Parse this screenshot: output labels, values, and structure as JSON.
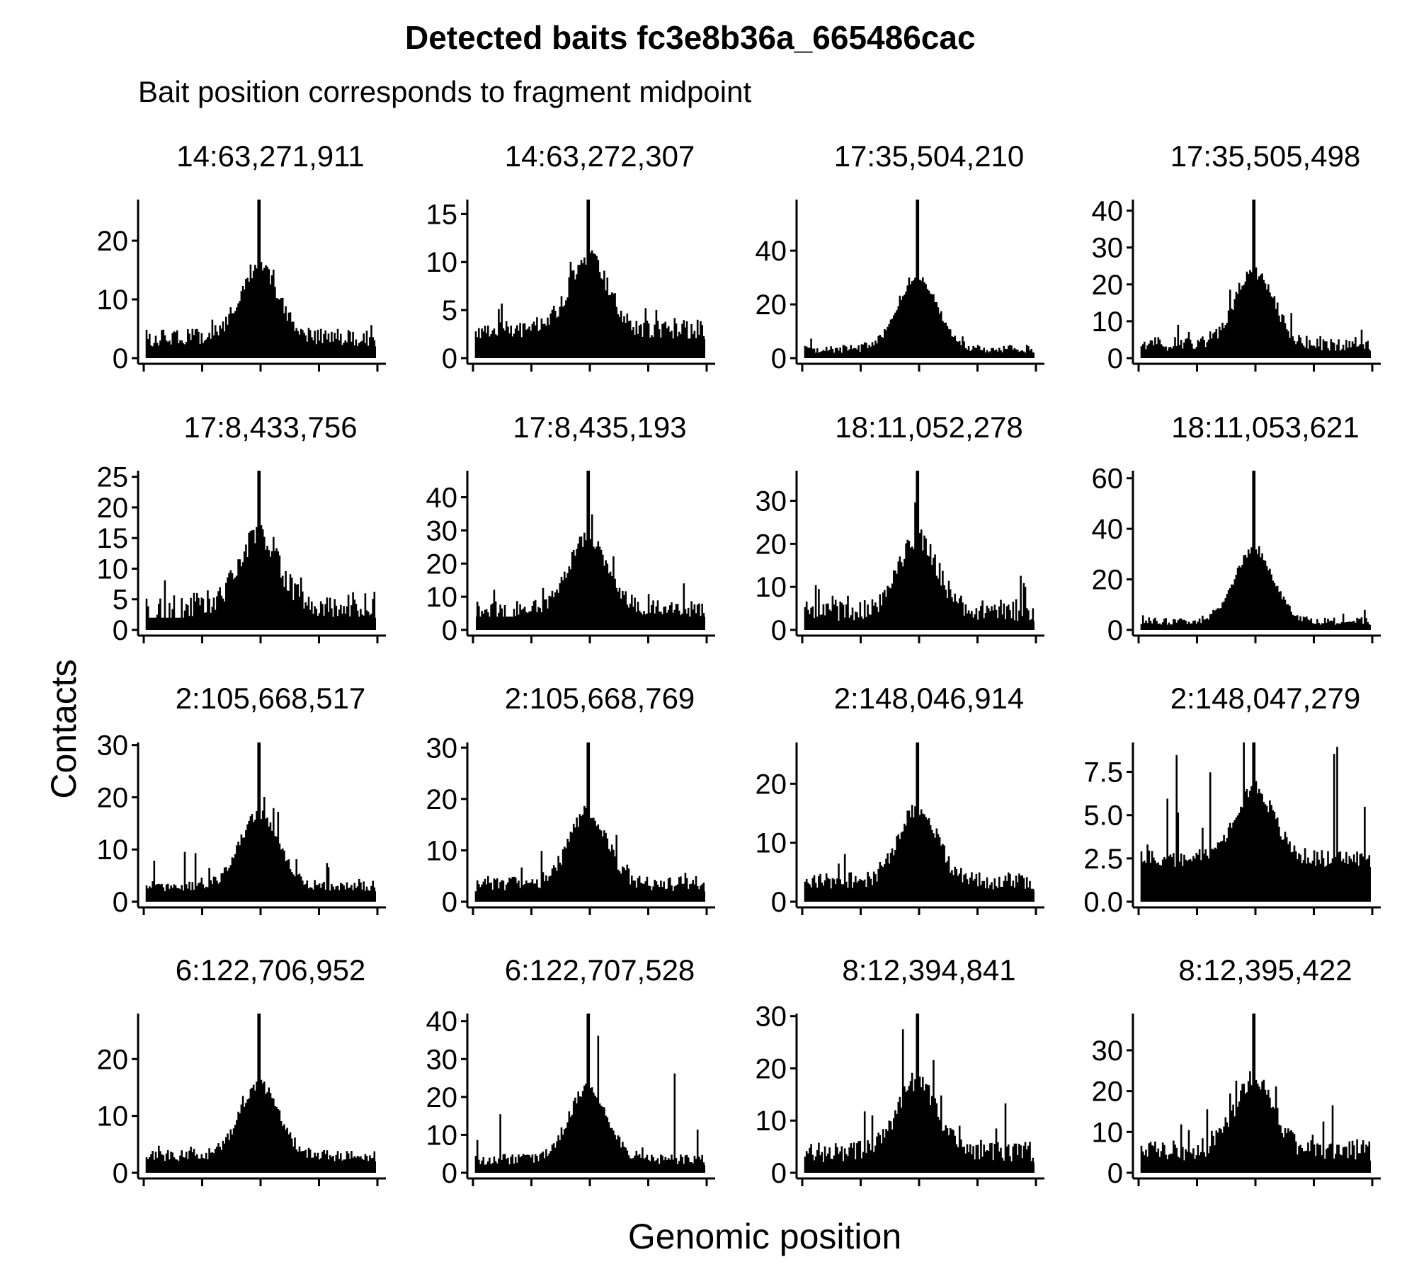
{
  "figure": {
    "title": "Detected baits fc3e8b36a_665486cac",
    "subtitle": "Bait position corresponds to fragment midpoint",
    "xlabel": "Genomic position",
    "ylabel": "Contacts"
  },
  "chart_data": [
    {
      "type": "bar",
      "title": "14:63,271,911",
      "ylim": [
        0,
        27
      ],
      "yticks": [
        "0",
        "10",
        "20"
      ],
      "ytick_values": [
        0,
        10,
        20
      ],
      "baseline": 2,
      "peak": 27,
      "noise": 3,
      "max_noise": 7,
      "sparse": false,
      "seed": 11
    },
    {
      "type": "bar",
      "title": "14:63,272,307",
      "ylim": [
        0,
        16.5
      ],
      "yticks": [
        "0",
        "5",
        "10",
        "15"
      ],
      "ytick_values": [
        0,
        5,
        10,
        15
      ],
      "baseline": 2,
      "peak": 16.5,
      "noise": 2,
      "max_noise": 6,
      "sparse": false,
      "seed": 12
    },
    {
      "type": "bar",
      "title": "17:35,504,210",
      "ylim": [
        0,
        59
      ],
      "yticks": [
        "0",
        "20",
        "40"
      ],
      "ytick_values": [
        0,
        20,
        40
      ],
      "baseline": 2,
      "peak": 59,
      "noise": 3,
      "max_noise": 8,
      "sparse": false,
      "seed": 13
    },
    {
      "type": "bar",
      "title": "17:35,505,498",
      "ylim": [
        0,
        43
      ],
      "yticks": [
        "0",
        "10",
        "20",
        "30",
        "40"
      ],
      "ytick_values": [
        0,
        10,
        20,
        30,
        40
      ],
      "baseline": 2,
      "peak": 43,
      "noise": 4,
      "max_noise": 10,
      "sparse": false,
      "seed": 14
    },
    {
      "type": "bar",
      "title": "17:8,433,756",
      "ylim": [
        0,
        26
      ],
      "yticks": [
        "0",
        "5",
        "10",
        "15",
        "20",
        "25"
      ],
      "ytick_values": [
        0,
        5,
        10,
        15,
        20,
        25
      ],
      "baseline": 2,
      "peak": 26,
      "noise": 4,
      "max_noise": 10,
      "sparse": true,
      "seed": 15
    },
    {
      "type": "bar",
      "title": "17:8,435,193",
      "ylim": [
        0,
        48
      ],
      "yticks": [
        "0",
        "10",
        "20",
        "30",
        "40"
      ],
      "ytick_values": [
        0,
        10,
        20,
        30,
        40
      ],
      "baseline": 4,
      "peak": 48,
      "noise": 5,
      "max_noise": 16,
      "sparse": true,
      "seed": 16
    },
    {
      "type": "bar",
      "title": "18:11,052,278",
      "ylim": [
        0,
        37
      ],
      "yticks": [
        "0",
        "10",
        "20",
        "30"
      ],
      "ytick_values": [
        0,
        10,
        20,
        30
      ],
      "baseline": 2,
      "peak": 37,
      "noise": 5,
      "max_noise": 14,
      "sparse": false,
      "seed": 17
    },
    {
      "type": "bar",
      "title": "18:11,053,621",
      "ylim": [
        0,
        63
      ],
      "yticks": [
        "0",
        "20",
        "40",
        "60"
      ],
      "ytick_values": [
        0,
        20,
        40,
        60
      ],
      "baseline": 2,
      "peak": 63,
      "noise": 3,
      "max_noise": 8,
      "sparse": false,
      "seed": 18
    },
    {
      "type": "bar",
      "title": "2:105,668,517",
      "ylim": [
        0,
        30.5
      ],
      "yticks": [
        "0",
        "10",
        "20",
        "30"
      ],
      "ytick_values": [
        0,
        10,
        20,
        30
      ],
      "baseline": 2,
      "peak": 30.5,
      "noise": 2,
      "max_noise": 10,
      "sparse": false,
      "seed": 19
    },
    {
      "type": "bar",
      "title": "2:105,668,769",
      "ylim": [
        0,
        31
      ],
      "yticks": [
        "0",
        "10",
        "20",
        "30"
      ],
      "ytick_values": [
        0,
        10,
        20,
        30
      ],
      "baseline": 2,
      "peak": 31,
      "noise": 3,
      "max_noise": 10,
      "sparse": false,
      "seed": 20
    },
    {
      "type": "bar",
      "title": "2:148,046,914",
      "ylim": [
        0,
        27
      ],
      "yticks": [
        "0",
        "10",
        "20"
      ],
      "ytick_values": [
        0,
        10,
        20
      ],
      "baseline": 2,
      "peak": 27,
      "noise": 3,
      "max_noise": 10,
      "sparse": false,
      "seed": 21
    },
    {
      "type": "bar",
      "title": "2:148,047,279",
      "ylim": [
        0,
        9.2
      ],
      "yticks": [
        "0.0",
        "2.5",
        "5.0",
        "7.5"
      ],
      "ytick_values": [
        0,
        2.5,
        5,
        7.5
      ],
      "baseline": 2,
      "peak": 9.2,
      "noise": 1,
      "max_noise": 9,
      "sparse": false,
      "seed": 22
    },
    {
      "type": "bar",
      "title": "6:122,706,952",
      "ylim": [
        0,
        28
      ],
      "yticks": [
        "0",
        "10",
        "20"
      ],
      "ytick_values": [
        0,
        10,
        20
      ],
      "baseline": 2,
      "peak": 28,
      "noise": 2,
      "max_noise": 5,
      "sparse": false,
      "seed": 23
    },
    {
      "type": "bar",
      "title": "6:122,707,528",
      "ylim": [
        0,
        42
      ],
      "yticks": [
        "0",
        "10",
        "20",
        "30",
        "40"
      ],
      "ytick_values": [
        0,
        10,
        20,
        30,
        40
      ],
      "baseline": 2,
      "peak": 42,
      "noise": 3,
      "max_noise": 33,
      "sparse": false,
      "seed": 24
    },
    {
      "type": "bar",
      "title": "8:12,394,841",
      "ylim": [
        0,
        30.5
      ],
      "yticks": [
        "0",
        "10",
        "20",
        "30"
      ],
      "ytick_values": [
        0,
        10,
        20,
        30
      ],
      "baseline": 2,
      "peak": 30.5,
      "noise": 4,
      "max_noise": 18,
      "sparse": false,
      "seed": 25
    },
    {
      "type": "bar",
      "title": "8:12,395,422",
      "ylim": [
        0,
        39
      ],
      "yticks": [
        "0",
        "10",
        "20",
        "30"
      ],
      "ytick_values": [
        0,
        10,
        20,
        30
      ],
      "baseline": 3,
      "peak": 39,
      "noise": 5,
      "max_noise": 17,
      "sparse": false,
      "seed": 26
    }
  ]
}
